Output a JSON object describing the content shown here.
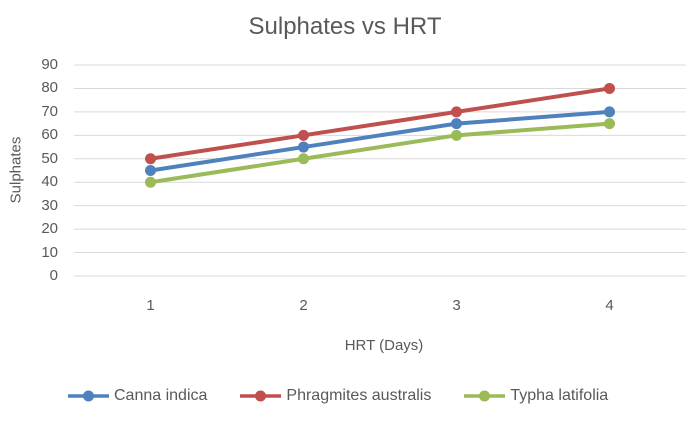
{
  "chart_data": {
    "type": "line",
    "title": "Sulphates vs HRT",
    "xlabel": "HRT (Days)",
    "ylabel": "Sulphates",
    "categories": [
      "1",
      "2",
      "3",
      "4"
    ],
    "series": [
      {
        "name": "Canna indica",
        "color": "#4F81BD",
        "values": [
          45,
          55,
          65,
          70
        ]
      },
      {
        "name": "Phragmites australis",
        "color": "#C0504D",
        "values": [
          50,
          60,
          70,
          80
        ]
      },
      {
        "name": "Typha latifolia",
        "color": "#9BBB59",
        "values": [
          40,
          50,
          60,
          65
        ]
      }
    ],
    "ylim": [
      0,
      90
    ],
    "ytick_step": 10,
    "grid": true,
    "legend_position": "bottom",
    "marker": "circle",
    "colors": {
      "text": "#595959",
      "gridline": "#D9D9D9",
      "background": "#FFFFFF"
    }
  }
}
